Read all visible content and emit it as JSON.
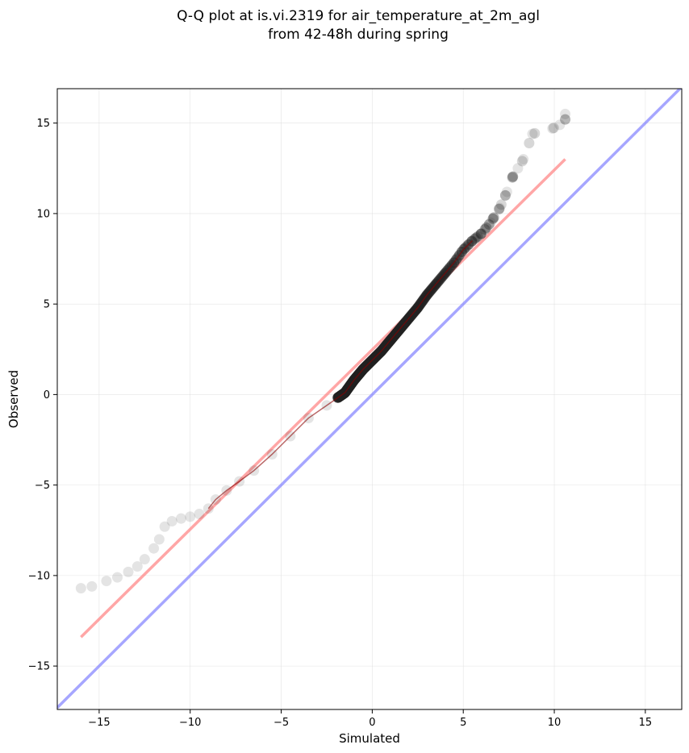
{
  "chart_data": {
    "type": "scatter",
    "title_line1": "Q-Q plot at is.vi.2319 for air_temperature_at_2m_agl",
    "title_line2": "from 42-48h during spring",
    "xlabel": "Simulated",
    "ylabel": "Observed",
    "xlim": [
      -17.3,
      17.0
    ],
    "ylim": [
      -17.4,
      16.9
    ],
    "xticks": [
      -15,
      -10,
      -5,
      0,
      5,
      10,
      15
    ],
    "yticks": [
      -15,
      -10,
      -5,
      0,
      5,
      10,
      15
    ],
    "xtick_labels": [
      "−15",
      "−10",
      "−5",
      "0",
      "5",
      "10",
      "15"
    ],
    "ytick_labels": [
      "−15",
      "−10",
      "−5",
      "0",
      "5",
      "10",
      "15"
    ],
    "grid": true,
    "colors": {
      "points": "#222222",
      "fit_line": "#ff8080",
      "identity_line": "#8080ff",
      "central_trace": "#8b0000"
    },
    "quantile_curve": [
      [
        -16.0,
        -10.7
      ],
      [
        -15.4,
        -10.6
      ],
      [
        -14.6,
        -10.3
      ],
      [
        -14.0,
        -10.1
      ],
      [
        -13.4,
        -9.8
      ],
      [
        -12.9,
        -9.5
      ],
      [
        -12.5,
        -9.1
      ],
      [
        -12.0,
        -8.5
      ],
      [
        -11.7,
        -8.0
      ],
      [
        -11.4,
        -7.3
      ],
      [
        -11.0,
        -7.0
      ],
      [
        -10.5,
        -6.85
      ],
      [
        -10.0,
        -6.75
      ],
      [
        -9.5,
        -6.6
      ],
      [
        -9.0,
        -6.3
      ],
      [
        -8.6,
        -5.8
      ],
      [
        -8.0,
        -5.3
      ],
      [
        -7.3,
        -4.8
      ],
      [
        -6.5,
        -4.2
      ],
      [
        -5.5,
        -3.3
      ],
      [
        -4.5,
        -2.3
      ],
      [
        -3.5,
        -1.3
      ],
      [
        -2.5,
        -0.6
      ],
      [
        -1.5,
        0.1
      ],
      [
        -1.0,
        0.8
      ],
      [
        -0.5,
        1.4
      ],
      [
        0.0,
        1.9
      ],
      [
        0.5,
        2.4
      ],
      [
        1.0,
        3.0
      ],
      [
        1.5,
        3.6
      ],
      [
        2.0,
        4.2
      ],
      [
        2.5,
        4.8
      ],
      [
        3.0,
        5.5
      ],
      [
        3.5,
        6.1
      ],
      [
        4.0,
        6.7
      ],
      [
        4.5,
        7.3
      ],
      [
        5.0,
        8.0
      ],
      [
        5.5,
        8.5
      ],
      [
        6.0,
        8.9
      ],
      [
        6.5,
        9.5
      ],
      [
        7.0,
        10.3
      ],
      [
        7.4,
        11.2
      ],
      [
        7.7,
        12.0
      ],
      [
        8.0,
        12.5
      ],
      [
        8.3,
        13.0
      ],
      [
        8.8,
        14.4
      ],
      [
        9.9,
        14.7
      ],
      [
        10.3,
        14.9
      ],
      [
        10.6,
        15.2
      ],
      [
        10.6,
        15.5
      ]
    ],
    "fit_line": {
      "x": [
        -16.0,
        10.6
      ],
      "y": [
        -13.4,
        13.0
      ]
    },
    "identity_line": {
      "x": [
        -17.3,
        17.0
      ],
      "y": [
        -17.3,
        17.0
      ]
    }
  }
}
